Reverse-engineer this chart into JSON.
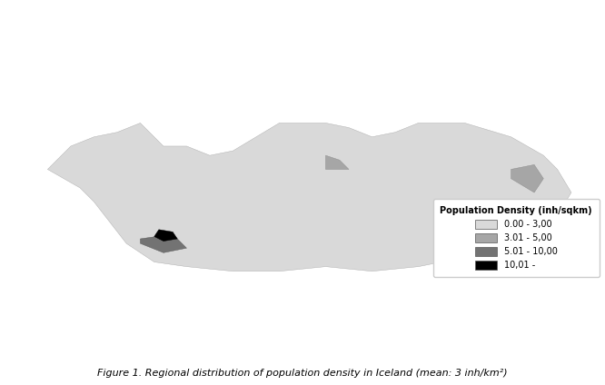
{
  "title": "Figure 1. Regional distribution of population density in Iceland (mean: 3 inh/km²)",
  "legend_title": "Population Density (inh/sqkm)",
  "legend_labels": [
    "0.00 - 3,00",
    "3.01 - 5,00",
    "5.01 - 10,00",
    "10,01 -"
  ],
  "legend_colors": [
    "#d9d9d9",
    "#a6a6a6",
    "#737373",
    "#000000"
  ],
  "background_color": "#ffffff",
  "map_background": "#ffffff",
  "border_color": "#ffffff",
  "figsize": [
    6.66,
    4.24
  ],
  "dpi": 100
}
